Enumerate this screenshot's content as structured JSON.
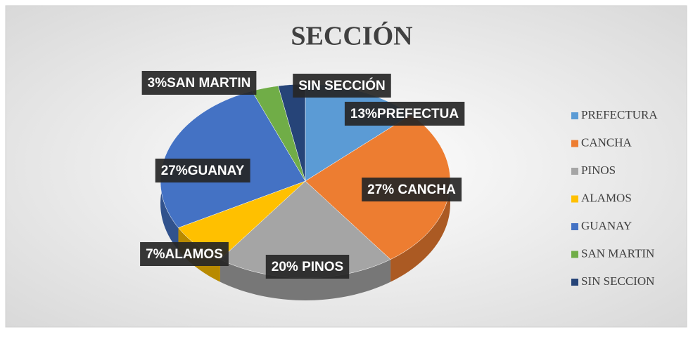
{
  "chart_data": {
    "type": "pie",
    "title": "SECCIÓN",
    "categories": [
      "PREFECTURA",
      "CANCHA",
      "PINOS",
      "ALAMOS",
      "GUANAY",
      "SAN MARTIN",
      "SIN SECCION"
    ],
    "values": [
      13,
      27,
      20,
      7,
      27,
      3,
      3
    ],
    "value_labels": [
      "13%PREFECTUA",
      "27% CANCHA",
      "20% PINOS",
      "7%ALAMOS",
      "27%GUANAY",
      "3%SAN MARTIN",
      "SIN SECCIÓN"
    ],
    "colors": [
      "#5b9bd5",
      "#ed7d31",
      "#a5a5a5",
      "#ffc000",
      "#4472c4",
      "#70ad47",
      "#264478"
    ],
    "legend": "right"
  }
}
